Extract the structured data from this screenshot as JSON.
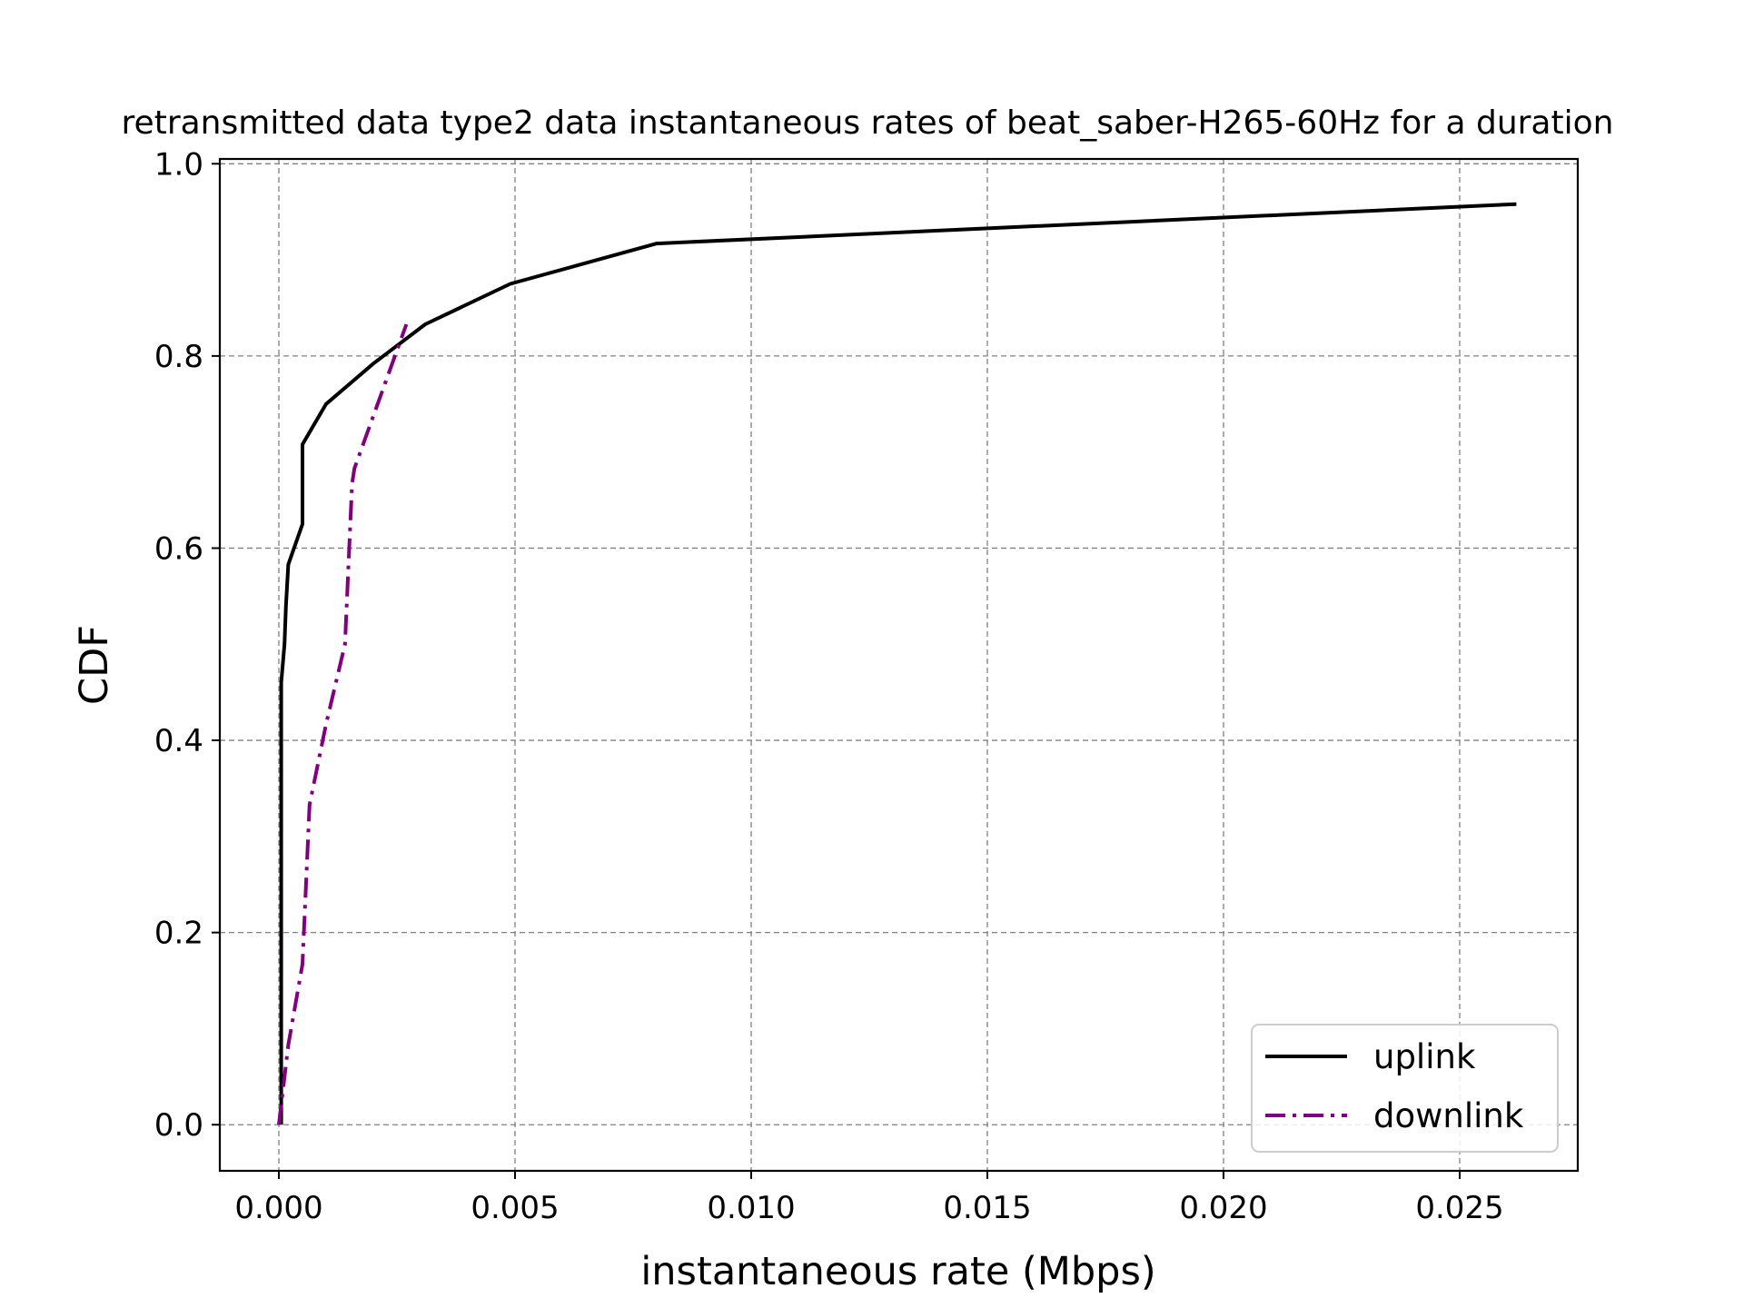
{
  "chart_data": {
    "type": "line",
    "title": "retransmitted data type2 data instantaneous rates of beat_saber-H265-60Hz for a duration",
    "xlabel": "instantaneous rate (Mbps)",
    "ylabel": "CDF",
    "xlim": [
      -0.00125,
      0.0275
    ],
    "ylim": [
      -0.048,
      1.005
    ],
    "xticks": [
      0.0,
      0.005,
      0.01,
      0.015,
      0.02,
      0.025
    ],
    "xtick_labels": [
      "0.000",
      "0.005",
      "0.010",
      "0.015",
      "0.020",
      "0.025"
    ],
    "yticks": [
      0.0,
      0.2,
      0.4,
      0.6,
      0.8,
      1.0
    ],
    "ytick_labels": [
      "0.0",
      "0.2",
      "0.4",
      "0.6",
      "0.8",
      "1.0"
    ],
    "grid": true,
    "legend_position": "lower-right",
    "series": [
      {
        "name": "uplink",
        "color": "#000000",
        "dash": "solid",
        "x": [
          5e-05,
          5e-05,
          5e-05,
          0.00012,
          0.00015,
          0.0002,
          0.0005,
          0.0005,
          0.001,
          0.002,
          0.0031,
          0.0049,
          0.008,
          0.0262
        ],
        "y": [
          0.0,
          0.04,
          0.46,
          0.5,
          0.54,
          0.583,
          0.625,
          0.708,
          0.75,
          0.792,
          0.833,
          0.875,
          0.917,
          0.958
        ]
      },
      {
        "name": "downlink",
        "color": "#800080",
        "dash": "dashdot",
        "x": [
          0.0,
          0.0002,
          0.0005,
          0.00065,
          0.001,
          0.0014,
          0.00155,
          0.0016,
          0.0027
        ],
        "y": [
          0.0,
          0.083,
          0.167,
          0.333,
          0.417,
          0.5,
          0.667,
          0.683,
          0.833
        ]
      }
    ]
  }
}
